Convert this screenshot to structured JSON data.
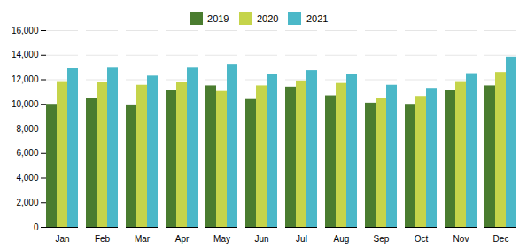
{
  "chart_data": {
    "type": "bar",
    "categories": [
      "Jan",
      "Feb",
      "Mar",
      "Apr",
      "May",
      "Jun",
      "Jul",
      "Aug",
      "Sep",
      "Oct",
      "Nov",
      "Dec"
    ],
    "series": [
      {
        "name": "2019",
        "color": "#4a7c2f",
        "values": [
          10000,
          10500,
          9900,
          11100,
          11500,
          10400,
          11400,
          10700,
          10100,
          10000,
          11100,
          11500
        ]
      },
      {
        "name": "2020",
        "color": "#c5d44a",
        "values": [
          11850,
          11800,
          11550,
          11800,
          11050,
          11500,
          11900,
          11700,
          10500,
          10650,
          11850,
          12600
        ]
      },
      {
        "name": "2021",
        "color": "#4bb8c8",
        "values": [
          12900,
          12950,
          12300,
          12950,
          13250,
          12450,
          12750,
          12400,
          11550,
          11300,
          12500,
          13850
        ]
      }
    ],
    "ylim": [
      0,
      16000
    ],
    "yticks": [
      0,
      {
        "value": 2000,
        "label": "2,000"
      },
      {
        "value": 4000,
        "label": "4,000"
      },
      {
        "value": 6000,
        "label": "6,000"
      },
      {
        "value": 8000,
        "label": "8,000"
      },
      {
        "value": 10000,
        "label": "10,000"
      },
      {
        "value": 12000,
        "label": "12,000"
      },
      {
        "value": 14000,
        "label": "14,000"
      },
      {
        "value": 16000,
        "label": "16,000"
      }
    ],
    "grid": true,
    "legend": "top"
  }
}
